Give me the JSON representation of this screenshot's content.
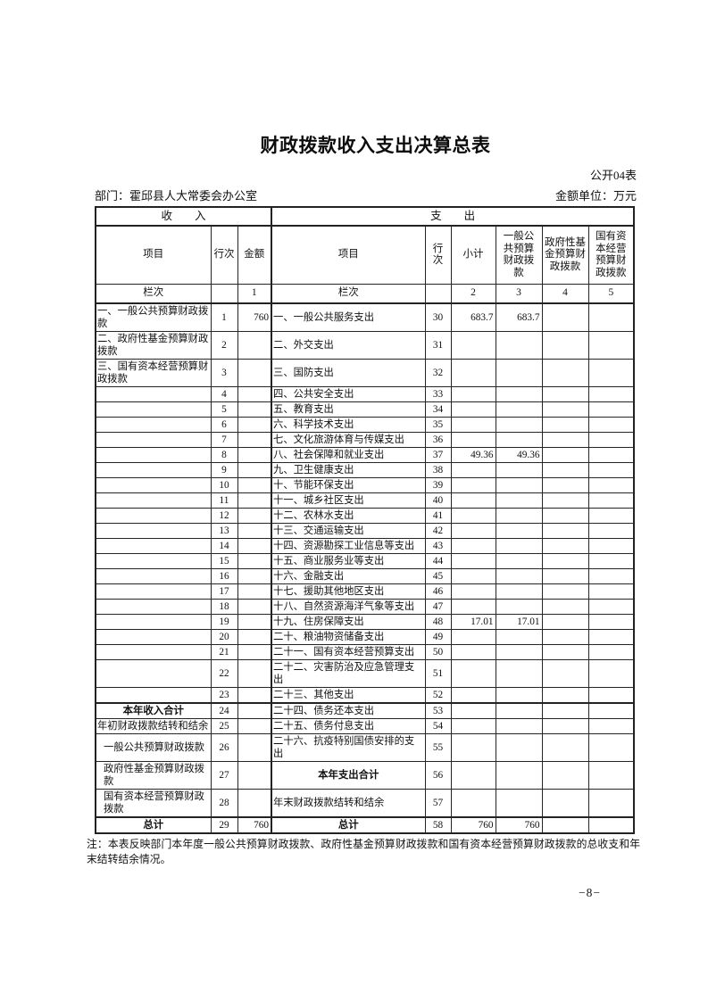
{
  "page": {
    "title": "财政拨款收入支出决算总表",
    "form_code": "公开04表",
    "department": "部门：霍邱县人大常委会办公室",
    "unit": "金额单位：万元",
    "note": "注：本表反映部门本年度一般公共预算财政拨款、政府性基金预算财政拨款和国有资本经营预算财政拨款的总收支和年末结转结余情况。",
    "page_number": "−8−"
  },
  "table": {
    "sections": {
      "income": "收　　入",
      "expense": "支　　出"
    },
    "columns": [
      "项目",
      "行次",
      "金额",
      "项目",
      "行\n次",
      "小计",
      "一般公\n共预算\n财政拨\n款",
      "政府性基\n金预算财\n政拨款",
      "国有资\n本经营\n预算财\n政拨款"
    ],
    "lanci": [
      "栏次",
      "",
      "1",
      "栏次",
      "",
      "2",
      "3",
      "4",
      "5"
    ],
    "rows": [
      {
        "cells": [
          "一、一般公共预算财政拨款",
          "1",
          "760",
          "一、一般公共服务支出",
          "30",
          "683.7",
          "683.7",
          "",
          ""
        ]
      },
      {
        "cells": [
          "二、政府性基金预算财政拨款",
          "2",
          "",
          "二、外交支出",
          "31",
          "",
          "",
          "",
          ""
        ]
      },
      {
        "cells": [
          "三、国有资本经营预算财政拨款",
          "3",
          "",
          "三、国防支出",
          "32",
          "",
          "",
          "",
          ""
        ]
      },
      {
        "cells": [
          "",
          "4",
          "",
          "四、公共安全支出",
          "33",
          "",
          "",
          "",
          ""
        ]
      },
      {
        "cells": [
          "",
          "5",
          "",
          "五、教育支出",
          "34",
          "",
          "",
          "",
          ""
        ]
      },
      {
        "cells": [
          "",
          "6",
          "",
          "六、科学技术支出",
          "35",
          "",
          "",
          "",
          ""
        ]
      },
      {
        "cells": [
          "",
          "7",
          "",
          "七、文化旅游体育与传媒支出",
          "36",
          "",
          "",
          "",
          ""
        ]
      },
      {
        "cells": [
          "",
          "8",
          "",
          "八、社会保障和就业支出",
          "37",
          "49.36",
          "49.36",
          "",
          ""
        ]
      },
      {
        "cells": [
          "",
          "9",
          "",
          "九、卫生健康支出",
          "38",
          "",
          "",
          "",
          ""
        ]
      },
      {
        "cells": [
          "",
          "10",
          "",
          "十、节能环保支出",
          "39",
          "",
          "",
          "",
          ""
        ]
      },
      {
        "cells": [
          "",
          "11",
          "",
          "十一、城乡社区支出",
          "40",
          "",
          "",
          "",
          ""
        ]
      },
      {
        "cells": [
          "",
          "12",
          "",
          "十二、农林水支出",
          "41",
          "",
          "",
          "",
          ""
        ]
      },
      {
        "cells": [
          "",
          "13",
          "",
          "十三、交通运输支出",
          "42",
          "",
          "",
          "",
          ""
        ]
      },
      {
        "cells": [
          "",
          "14",
          "",
          "十四、资源勘探工业信息等支出",
          "43",
          "",
          "",
          "",
          ""
        ]
      },
      {
        "cells": [
          "",
          "15",
          "",
          "十五、商业服务业等支出",
          "44",
          "",
          "",
          "",
          ""
        ]
      },
      {
        "cells": [
          "",
          "16",
          "",
          "十六、金融支出",
          "45",
          "",
          "",
          "",
          ""
        ]
      },
      {
        "cells": [
          "",
          "17",
          "",
          "十七、援助其他地区支出",
          "46",
          "",
          "",
          "",
          ""
        ]
      },
      {
        "cells": [
          "",
          "18",
          "",
          "十八、自然资源海洋气象等支出",
          "47",
          "",
          "",
          "",
          ""
        ]
      },
      {
        "cells": [
          "",
          "19",
          "",
          "十九、住房保障支出",
          "48",
          "17.01",
          "17.01",
          "",
          ""
        ]
      },
      {
        "cells": [
          "",
          "20",
          "",
          "二十、粮油物资储备支出",
          "49",
          "",
          "",
          "",
          ""
        ]
      },
      {
        "cells": [
          "",
          "21",
          "",
          "二十一、国有资本经营预算支出",
          "50",
          "",
          "",
          "",
          ""
        ]
      },
      {
        "cells": [
          "",
          "22",
          "",
          "二十二、灾害防治及应急管理支出",
          "51",
          "",
          "",
          "",
          ""
        ]
      },
      {
        "cells": [
          "",
          "23",
          "",
          "二十三、其他支出",
          "52",
          "",
          "",
          "",
          ""
        ]
      },
      {
        "cells": [
          "本年收入合计",
          "24",
          "",
          "二十四、债务还本支出",
          "53",
          "",
          "",
          "",
          ""
        ],
        "inTotal": true,
        "thickTop": true
      },
      {
        "cells": [
          "年初财政拨款结转和结余",
          "25",
          "",
          "二十五、债务付息支出",
          "54",
          "",
          "",
          "",
          ""
        ]
      },
      {
        "cells": [
          "一般公共预算财政拨款",
          "26",
          "",
          "二十六、抗疫特别国债安排的支出",
          "55",
          "",
          "",
          "",
          ""
        ],
        "inIndent": true
      },
      {
        "cells": [
          "政府性基金预算财政拨款",
          "27",
          "",
          "本年支出合计",
          "56",
          "",
          "",
          "",
          ""
        ],
        "inIndent": true,
        "exTotal": true
      },
      {
        "cells": [
          "国有资本经营预算财政拨款",
          "28",
          "",
          "年末财政拨款结转和结余",
          "57",
          "",
          "",
          "",
          ""
        ],
        "inIndent": true
      },
      {
        "cells": [
          "总计",
          "29",
          "760",
          "总计",
          "58",
          "760",
          "760",
          "",
          ""
        ],
        "inTotal": true,
        "exTotal": true,
        "thickTop": true
      }
    ]
  }
}
